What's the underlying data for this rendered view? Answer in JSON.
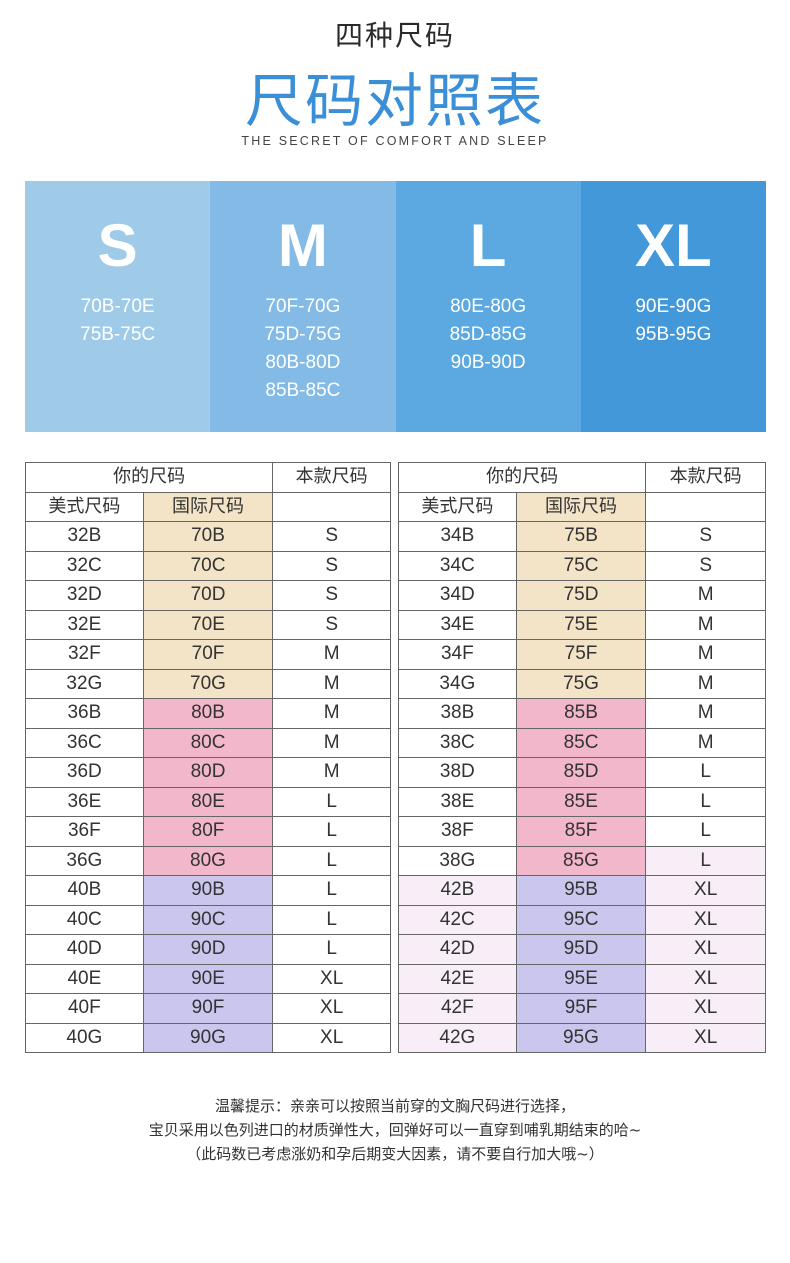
{
  "header": {
    "subtitle": "四种尺码",
    "title": "尺码对照表",
    "tagline": "THE SECRET OF COMFORT AND SLEEP"
  },
  "colors": {
    "title_blue": "#3a8fd6",
    "band": [
      "#9fcbe8",
      "#83bbe6",
      "#5ba9e0",
      "#4398d9"
    ],
    "beige": "#f3e3c7",
    "pink": "#f2b7cb",
    "lavender": "#cbc6ee",
    "light": "#f7eef8"
  },
  "sizes": [
    {
      "letter": "S",
      "ranges": [
        "70B-70E",
        "75B-75C"
      ]
    },
    {
      "letter": "M",
      "ranges": [
        "70F-70G",
        "75D-75G",
        "80B-80D",
        "85B-85C"
      ]
    },
    {
      "letter": "L",
      "ranges": [
        "80E-80G",
        "85D-85G",
        "90B-90D"
      ]
    },
    {
      "letter": "XL",
      "ranges": [
        "90E-90G",
        "95B-95G"
      ]
    }
  ],
  "table_headers": {
    "your_size": "你的尺码",
    "this_model": "本款尺码",
    "us_size": "美式尺码",
    "intl_size": "国际尺码"
  },
  "table_left": [
    {
      "us": "32B",
      "intl": "70B",
      "size": "S"
    },
    {
      "us": "32C",
      "intl": "70C",
      "size": "S"
    },
    {
      "us": "32D",
      "intl": "70D",
      "size": "S"
    },
    {
      "us": "32E",
      "intl": "70E",
      "size": "S"
    },
    {
      "us": "32F",
      "intl": "70F",
      "size": "M"
    },
    {
      "us": "32G",
      "intl": "70G",
      "size": "M"
    },
    {
      "us": "36B",
      "intl": "80B",
      "size": "M"
    },
    {
      "us": "36C",
      "intl": "80C",
      "size": "M"
    },
    {
      "us": "36D",
      "intl": "80D",
      "size": "M"
    },
    {
      "us": "36E",
      "intl": "80E",
      "size": "L"
    },
    {
      "us": "36F",
      "intl": "80F",
      "size": "L"
    },
    {
      "us": "36G",
      "intl": "80G",
      "size": "L"
    },
    {
      "us": "40B",
      "intl": "90B",
      "size": "L"
    },
    {
      "us": "40C",
      "intl": "90C",
      "size": "L"
    },
    {
      "us": "40D",
      "intl": "90D",
      "size": "L"
    },
    {
      "us": "40E",
      "intl": "90E",
      "size": "XL"
    },
    {
      "us": "40F",
      "intl": "90F",
      "size": "XL"
    },
    {
      "us": "40G",
      "intl": "90G",
      "size": "XL"
    }
  ],
  "table_right": [
    {
      "us": "34B",
      "intl": "75B",
      "size": "S"
    },
    {
      "us": "34C",
      "intl": "75C",
      "size": "S"
    },
    {
      "us": "34D",
      "intl": "75D",
      "size": "M"
    },
    {
      "us": "34E",
      "intl": "75E",
      "size": "M"
    },
    {
      "us": "34F",
      "intl": "75F",
      "size": "M"
    },
    {
      "us": "34G",
      "intl": "75G",
      "size": "M"
    },
    {
      "us": "38B",
      "intl": "85B",
      "size": "M"
    },
    {
      "us": "38C",
      "intl": "85C",
      "size": "M"
    },
    {
      "us": "38D",
      "intl": "85D",
      "size": "L"
    },
    {
      "us": "38E",
      "intl": "85E",
      "size": "L"
    },
    {
      "us": "38F",
      "intl": "85F",
      "size": "L"
    },
    {
      "us": "38G",
      "intl": "85G",
      "size": "L"
    },
    {
      "us": "42B",
      "intl": "95B",
      "size": "XL"
    },
    {
      "us": "42C",
      "intl": "95C",
      "size": "XL"
    },
    {
      "us": "42D",
      "intl": "95D",
      "size": "XL"
    },
    {
      "us": "42E",
      "intl": "95E",
      "size": "XL"
    },
    {
      "us": "42F",
      "intl": "95F",
      "size": "XL"
    },
    {
      "us": "42G",
      "intl": "95G",
      "size": "XL"
    }
  ],
  "footnote": [
    "温馨提示：亲亲可以按照当前穿的文胸尺码进行选择，",
    "宝贝采用以色列进口的材质弹性大，回弹好可以一直穿到哺乳期结束的哈~",
    "（此码数已考虑涨奶和孕后期变大因素，请不要自行加大哦~）"
  ]
}
